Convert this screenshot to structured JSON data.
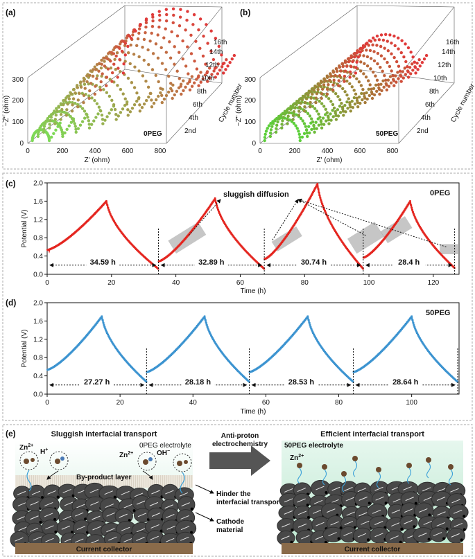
{
  "panel_a": {
    "label": "(a)",
    "tag": "0PEG",
    "z_label": "−Z\" (ohm)",
    "x_label": "Z' (ohm)",
    "y_label": "Cycle number",
    "z_ticks": [
      "0",
      "100",
      "200",
      "300"
    ],
    "x_ticks": [
      "0",
      "200",
      "400",
      "600",
      "800"
    ],
    "y_ticks": [
      "2nd",
      "4th",
      "6th",
      "8th",
      "10th",
      "12th",
      "14th",
      "16th"
    ]
  },
  "panel_b": {
    "label": "(b)",
    "tag": "50PEG",
    "z_label": "−Z\" (ohm)",
    "x_label": "Z' (ohm)",
    "y_label": "Cycle number",
    "z_ticks": [
      "0",
      "100",
      "200",
      "300"
    ],
    "x_ticks": [
      "0",
      "200",
      "400",
      "600",
      "800"
    ],
    "y_ticks": [
      "2nd",
      "4th",
      "6th",
      "8th",
      "10th",
      "12th",
      "14th",
      "16th"
    ]
  },
  "chart_data": [
    {
      "type": "scatter",
      "panel": "(a)",
      "title": "0PEG",
      "xlabel": "Z' (ohm)",
      "ylabel": "Cycle number",
      "zlabel": "−Z\" (ohm)",
      "xlim": [
        0,
        900
      ],
      "zlim": [
        0,
        300
      ],
      "cycles": [
        1,
        2,
        3,
        4,
        5,
        6,
        7,
        8,
        9,
        10,
        11,
        12,
        13,
        14,
        15,
        16,
        17
      ],
      "semicircle_end_ohm": [
        140,
        190,
        240,
        290,
        340,
        390,
        430,
        470,
        510,
        540,
        570,
        590,
        610,
        630,
        650,
        665,
        680
      ],
      "color_start": "#7ed957",
      "color_end": "#e03a3a"
    },
    {
      "type": "scatter",
      "panel": "(b)",
      "title": "50PEG",
      "xlabel": "Z' (ohm)",
      "ylabel": "Cycle number",
      "zlabel": "−Z\" (ohm)",
      "xlim": [
        0,
        900
      ],
      "zlim": [
        0,
        300
      ],
      "cycles": [
        1,
        2,
        3,
        4,
        5,
        6,
        7,
        8,
        9,
        10,
        11,
        12,
        13,
        14,
        15,
        16,
        17
      ],
      "semicircle_end_ohm": [
        260,
        270,
        280,
        290,
        300,
        310,
        320,
        330,
        340,
        350,
        360,
        370,
        380,
        390,
        400,
        410,
        420
      ],
      "color_start": "#5ccf3a",
      "color_end": "#e03a3a"
    },
    {
      "type": "line",
      "panel": "(c)",
      "title": "0PEG",
      "xlabel": "Time (h)",
      "ylabel": "Potential (V)",
      "xlim": [
        0,
        128
      ],
      "ylim": [
        0,
        2.0
      ],
      "x_ticks": [
        "0",
        "20",
        "40",
        "60",
        "80",
        "100",
        "120"
      ],
      "y_ticks": [
        "0.0",
        "0.4",
        "0.8",
        "1.2",
        "1.6",
        "2.0"
      ],
      "color": "#e4251f",
      "cycles": [
        {
          "start": 0,
          "peak_t": 18.4,
          "end": 34.59,
          "start_v": 0.55,
          "peak_v": 1.62,
          "end_v": 0.1
        },
        {
          "start": 34.59,
          "peak_t": 52.2,
          "end": 67.48,
          "start_v": 0.3,
          "peak_v": 1.68,
          "end_v": 0.1
        },
        {
          "start": 67.48,
          "peak_t": 84.0,
          "end": 98.22,
          "start_v": 0.35,
          "peak_v": 2.0,
          "end_v": 0.1
        },
        {
          "start": 98.22,
          "peak_t": 112.8,
          "end": 126.62,
          "start_v": 0.38,
          "peak_v": 1.62,
          "end_v": 0.12
        }
      ],
      "duration_labels": [
        "34.59 h",
        "32.89 h",
        "30.74 h",
        "28.4 h"
      ],
      "annotation": "sluggish diffusion"
    },
    {
      "type": "line",
      "panel": "(d)",
      "title": "50PEG",
      "xlabel": "Time (h)",
      "ylabel": "Potential (V)",
      "xlim": [
        0,
        113
      ],
      "ylim": [
        0,
        2.0
      ],
      "x_ticks": [
        "0",
        "20",
        "40",
        "60",
        "80",
        "100"
      ],
      "y_ticks": [
        "0.0",
        "0.4",
        "0.8",
        "1.2",
        "1.6",
        "2.0"
      ],
      "color": "#3b93d0",
      "cycles": [
        {
          "start": 0,
          "peak_t": 15.0,
          "end": 27.27,
          "start_v": 0.55,
          "peak_v": 1.72,
          "end_v": 0.25
        },
        {
          "start": 27.27,
          "peak_t": 43.2,
          "end": 55.45,
          "start_v": 0.5,
          "peak_v": 1.72,
          "end_v": 0.25
        },
        {
          "start": 55.45,
          "peak_t": 71.5,
          "end": 83.98,
          "start_v": 0.5,
          "peak_v": 1.72,
          "end_v": 0.25
        },
        {
          "start": 83.98,
          "peak_t": 100.0,
          "end": 112.62,
          "start_v": 0.5,
          "peak_v": 1.72,
          "end_v": 0.25
        }
      ],
      "duration_labels": [
        "27.27 h",
        "28.18 h",
        "28.53 h",
        "28.64 h"
      ]
    }
  ],
  "panel_c": {
    "label": "(c)"
  },
  "panel_d": {
    "label": "(d)"
  },
  "panel_e": {
    "label": "(e)",
    "left_title": "Sluggish interfacial transport",
    "right_title": "Efficient interfacial transport",
    "left_electrolyte": "0PEG electrolyte",
    "right_electrolyte": "50PEG electrolyte",
    "arrow_label_1": "Anti-proton",
    "arrow_label_2": "electrochemistry",
    "zn_left": "Zn",
    "zn_left_sup": "2+",
    "h_plus": "H",
    "h_plus_sup": "+",
    "zn_mid": "Zn",
    "zn_mid_sup": "2+",
    "oh_minus": "OH",
    "oh_minus_sup": "−",
    "zn_right": "Zn",
    "zn_right_sup": "2+",
    "byproduct": "By-product layer",
    "hinder_1": "Hinder the",
    "hinder_2": "interfacial transport",
    "cathode_1": "Cathode",
    "cathode_2": "material",
    "collector_left": "Current collector",
    "collector_right": "Current collector",
    "colors": {
      "electrolyte_top": "#d9f3e6",
      "particle": "#474747",
      "collector": "#8a6b4a",
      "arrow": "#555555",
      "byproduct": "#d8d2c4"
    }
  }
}
